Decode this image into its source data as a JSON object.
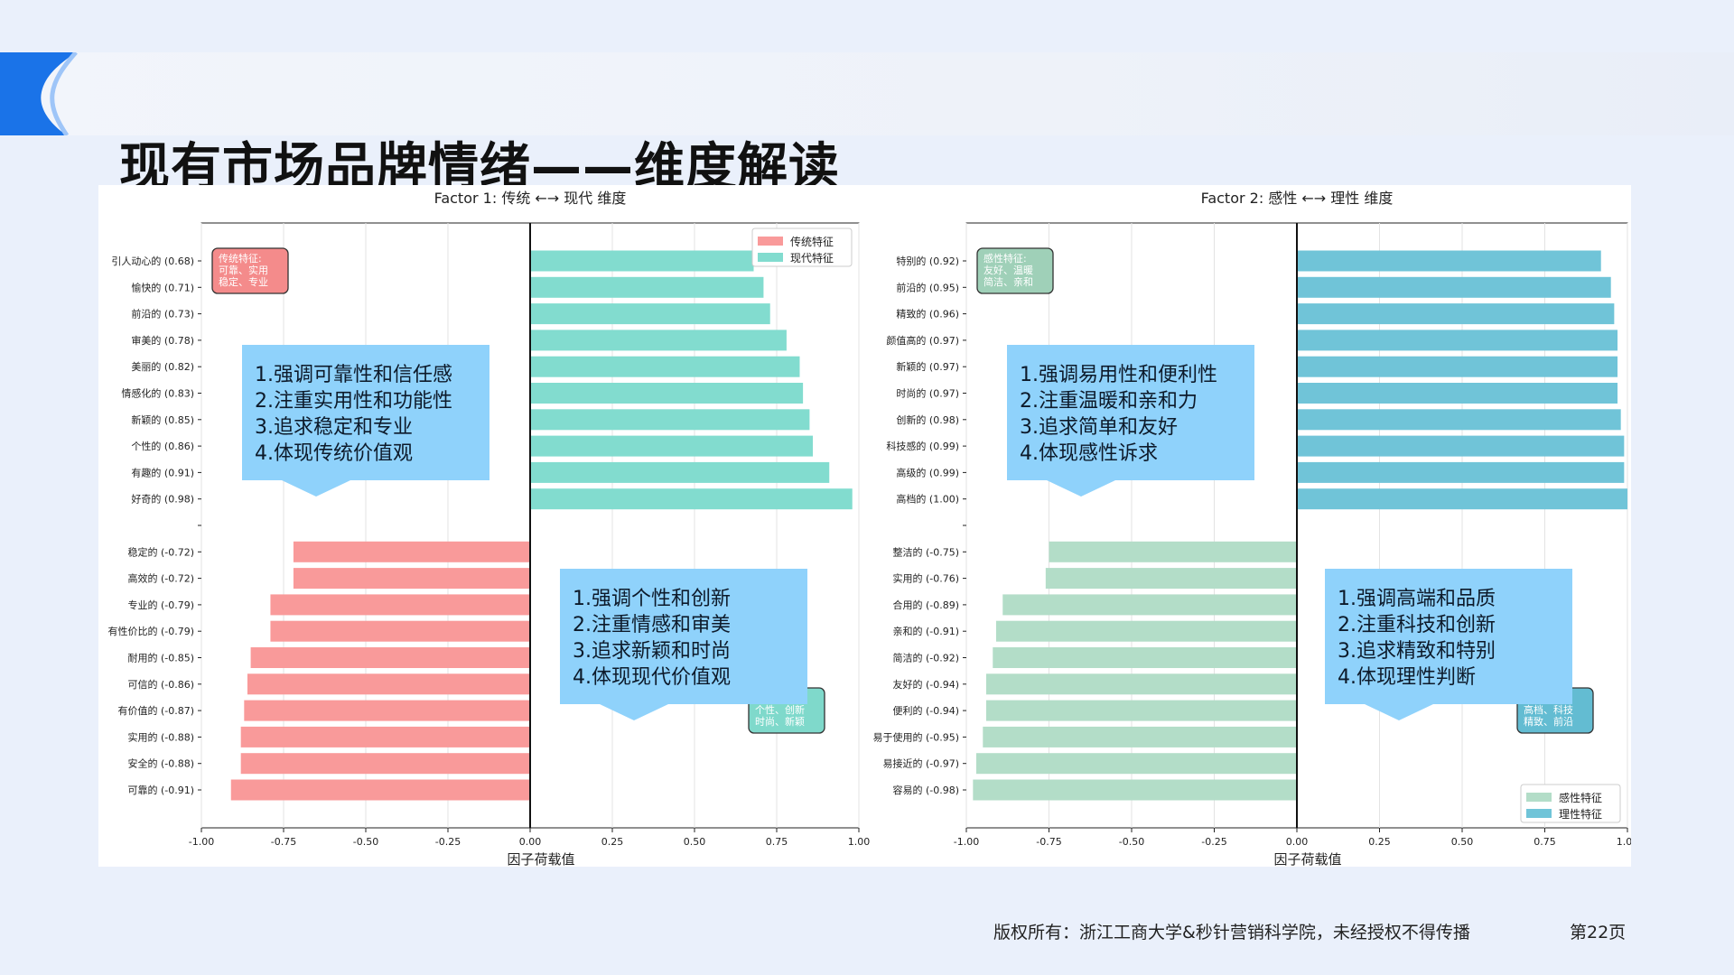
{
  "slide": {
    "title": "现有市场品牌情绪——维度解读",
    "copyright": "版权所有：浙江工商大学&秒针营销科学院，未经授权不得传播",
    "page": "第22页",
    "accent_color": "#1a73e8"
  },
  "chart_data": [
    {
      "type": "bar",
      "orientation": "horizontal",
      "title": "Factor 1: 传统 ←→ 现代 维度",
      "xlabel": "因子荷载值",
      "ylabel": "",
      "xlim": [
        -1.0,
        1.0
      ],
      "xticks": [
        "-1.00",
        "-0.75",
        "-0.50",
        "-0.25",
        "0.00",
        "0.25",
        "0.50",
        "0.75",
        "1.00"
      ],
      "grid": "x",
      "legend_position": "top-right",
      "series": [
        {
          "name": "传统特征",
          "color": "#f99a9a"
        },
        {
          "name": "现代特征",
          "color": "#82dccf"
        }
      ],
      "positive": {
        "series": "现代特征",
        "categories": [
          "引人动心的 (0.68)",
          "愉快的 (0.71)",
          "前沿的 (0.73)",
          "审美的 (0.78)",
          "美丽的 (0.82)",
          "情感化的 (0.83)",
          "新颖的 (0.85)",
          "个性的 (0.86)",
          "有趣的 (0.91)",
          "好奇的 (0.98)"
        ],
        "values": [
          0.68,
          0.71,
          0.73,
          0.78,
          0.82,
          0.83,
          0.85,
          0.86,
          0.91,
          0.98
        ]
      },
      "negative": {
        "series": "传统特征",
        "categories": [
          "稳定的 (-0.72)",
          "高效的 (-0.72)",
          "专业的 (-0.79)",
          "有性价比的 (-0.79)",
          "耐用的 (-0.85)",
          "可信的 (-0.86)",
          "有价值的 (-0.87)",
          "实用的 (-0.88)",
          "安全的 (-0.88)",
          "可靠的 (-0.91)"
        ],
        "values": [
          -0.72,
          -0.72,
          -0.79,
          -0.79,
          -0.85,
          -0.86,
          -0.87,
          -0.88,
          -0.88,
          -0.91
        ]
      },
      "tag_negative": {
        "lines": [
          "传统特征:",
          "可靠、实用",
          "稳定、专业"
        ],
        "color": "#f48b8b",
        "position": "top-left"
      },
      "tag_positive": {
        "lines": [
          "现代特征:",
          "个性、创新",
          "时尚、新颖"
        ],
        "color": "#7fd9cb",
        "position": "bottom-right"
      },
      "callouts": [
        {
          "position": "top-left",
          "lines": [
            "1.强调可靠性和信任感",
            "2.注重实用性和功能性",
            "3.追求稳定和专业",
            "4.体现传统价值观"
          ]
        },
        {
          "position": "bottom-right",
          "lines": [
            "1.强调个性和创新",
            "2.注重情感和审美",
            "3.追求新颖和时尚",
            "4.体现现代价值观"
          ]
        }
      ]
    },
    {
      "type": "bar",
      "orientation": "horizontal",
      "title": "Factor 2: 感性 ←→ 理性 维度",
      "xlabel": "因子荷载值",
      "ylabel": "",
      "xlim": [
        -1.0,
        1.0
      ],
      "xticks": [
        "-1.00",
        "-0.75",
        "-0.50",
        "-0.25",
        "0.00",
        "0.25",
        "0.50",
        "0.75",
        "1.00"
      ],
      "grid": "x",
      "legend_position": "bottom-right",
      "series": [
        {
          "name": "感性特征",
          "color": "#b3ddc8"
        },
        {
          "name": "理性特征",
          "color": "#70c4d8"
        }
      ],
      "positive": {
        "series": "理性特征",
        "categories": [
          "特别的 (0.92)",
          "前沿的 (0.95)",
          "精致的 (0.96)",
          "颜值高的 (0.97)",
          "新颖的 (0.97)",
          "时尚的 (0.97)",
          "创新的 (0.98)",
          "科技感的 (0.99)",
          "高级的 (0.99)",
          "高档的 (1.00)"
        ],
        "values": [
          0.92,
          0.95,
          0.96,
          0.97,
          0.97,
          0.97,
          0.98,
          0.99,
          0.99,
          1.0
        ]
      },
      "negative": {
        "series": "感性特征",
        "categories": [
          "整洁的 (-0.75)",
          "实用的 (-0.76)",
          "合用的 (-0.89)",
          "亲和的 (-0.91)",
          "简洁的 (-0.92)",
          "友好的 (-0.94)",
          "便利的 (-0.94)",
          "易于使用的 (-0.95)",
          "易接近的 (-0.97)",
          "容易的 (-0.98)"
        ],
        "values": [
          -0.75,
          -0.76,
          -0.89,
          -0.91,
          -0.92,
          -0.94,
          -0.94,
          -0.95,
          -0.97,
          -0.98
        ]
      },
      "tag_negative": {
        "lines": [
          "感性特征:",
          "友好、温暖",
          "简洁、亲和"
        ],
        "color": "#9fd0b8",
        "position": "top-left"
      },
      "tag_positive": {
        "lines": [
          "理性特征:",
          "高档、科技",
          "精致、前沿"
        ],
        "color": "#63bcd2",
        "position": "bottom-right"
      },
      "callouts": [
        {
          "position": "top-left",
          "lines": [
            "1.强调易用性和便利性",
            "2.注重温暖和亲和力",
            "3.追求简单和友好",
            "4.体现感性诉求"
          ]
        },
        {
          "position": "bottom-right",
          "lines": [
            "1.强调高端和品质",
            "2.注重科技和创新",
            "3.追求精致和特别",
            "4.体现理性判断"
          ]
        }
      ]
    }
  ]
}
